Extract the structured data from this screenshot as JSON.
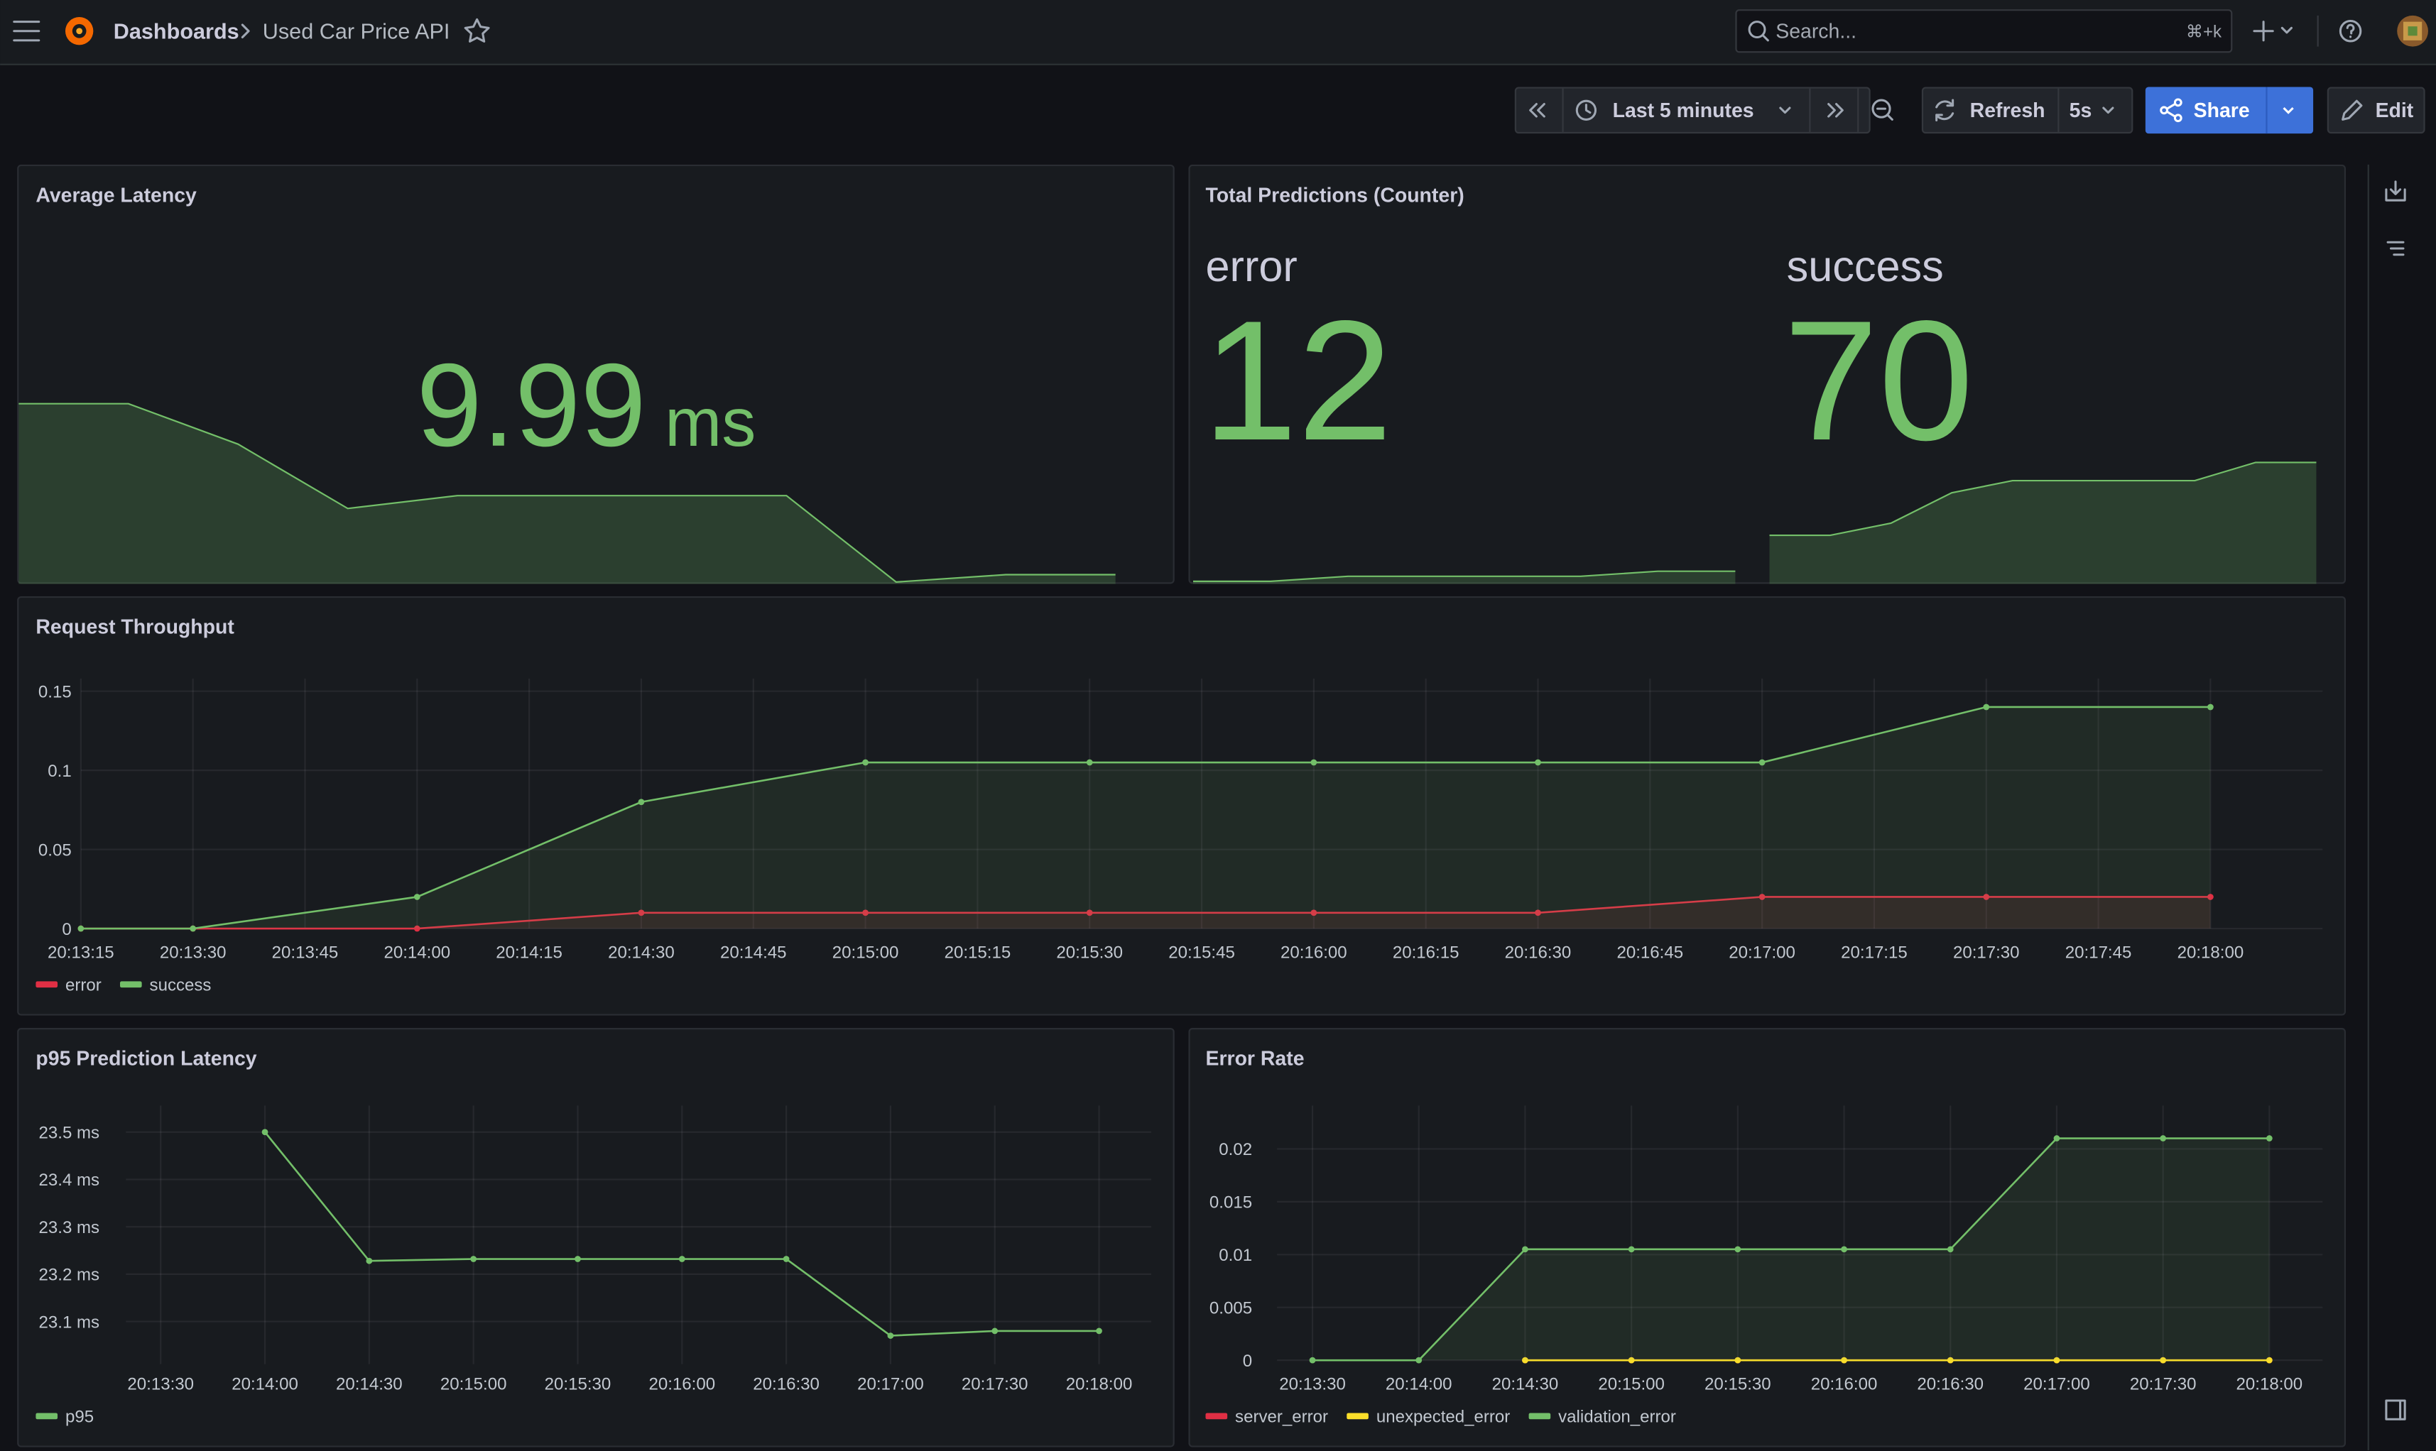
{
  "header": {
    "breadcrumb": [
      "Dashboards",
      "Used Car Price API"
    ],
    "search_placeholder": "Search...",
    "search_shortcut": "⌘+k"
  },
  "toolbar": {
    "time_range": "Last 5 minutes",
    "refresh": "Refresh",
    "interval": "5s",
    "share": "Share",
    "edit": "Edit"
  },
  "chart_data": [
    {
      "type": "stat",
      "title": "Average Latency",
      "value": 9.99,
      "unit": "ms",
      "color": "#73bf69",
      "sparkline": [
        10.92,
        10.92,
        10.7,
        10.35,
        10.42,
        10.42,
        10.42,
        10.42,
        9.95,
        9.99,
        9.99
      ],
      "sparkline_ylim": [
        9.94,
        10.92
      ]
    },
    {
      "type": "stat",
      "title": "Total Predictions (Counter)",
      "color": "#73bf69",
      "series": [
        {
          "name": "error",
          "value": 12,
          "sparkline": [
            8,
            8,
            10,
            10,
            10,
            10,
            12,
            12
          ],
          "sparkline_ylim": [
            7,
            60
          ]
        },
        {
          "name": "success",
          "value": 70,
          "sparkline": [
            58,
            58,
            60,
            65,
            67,
            67,
            67,
            67,
            70,
            70
          ],
          "sparkline_ylim": [
            50,
            72
          ]
        }
      ]
    },
    {
      "type": "line",
      "title": "Request Throughput",
      "x": [
        "20:13:15",
        "20:13:30",
        "20:14:00",
        "20:14:30",
        "20:15:00",
        "20:15:30",
        "20:16:00",
        "20:16:30",
        "20:17:00",
        "20:17:30",
        "20:18:00"
      ],
      "series": [
        {
          "name": "error",
          "color": "#e02f44",
          "values": [
            0,
            0,
            0,
            0.01,
            0.01,
            0.01,
            0.01,
            0.01,
            0.02,
            0.02,
            0.02
          ]
        },
        {
          "name": "success",
          "color": "#73bf69",
          "values": [
            0,
            0,
            0.02,
            0.08,
            0.105,
            0.105,
            0.105,
            0.105,
            0.105,
            0.14,
            0.14
          ]
        }
      ],
      "xlim": [
        "20:13:15",
        "20:18:15"
      ],
      "xticks": [
        "20:13:15",
        "20:13:30",
        "20:13:45",
        "20:14:00",
        "20:14:15",
        "20:14:30",
        "20:14:45",
        "20:15:00",
        "20:15:15",
        "20:15:30",
        "20:15:45",
        "20:16:00",
        "20:16:15",
        "20:16:30",
        "20:16:45",
        "20:17:00",
        "20:17:15",
        "20:17:30",
        "20:17:45",
        "20:18:00"
      ],
      "ylim": [
        0,
        0.158
      ],
      "yticks": [
        0,
        0.05,
        0.1,
        0.15
      ],
      "grid": true,
      "fill": true,
      "legend": "bottom-left"
    },
    {
      "type": "line",
      "title": "p95 Prediction Latency",
      "x": [
        "20:14:00",
        "20:14:30",
        "20:15:00",
        "20:15:30",
        "20:16:00",
        "20:16:30",
        "20:17:00",
        "20:17:30",
        "20:18:00"
      ],
      "series": [
        {
          "name": "p95",
          "color": "#73bf69",
          "values": [
            23.5,
            23.228,
            23.232,
            23.232,
            23.232,
            23.232,
            23.07,
            23.08,
            23.08
          ]
        }
      ],
      "xlim": [
        "20:13:20",
        "20:18:15"
      ],
      "xticks": [
        "20:13:30",
        "20:14:00",
        "20:14:30",
        "20:15:00",
        "20:15:30",
        "20:16:00",
        "20:16:30",
        "20:17:00",
        "20:17:30",
        "20:18:00"
      ],
      "ylim": [
        23.01,
        23.556
      ],
      "yticks": [
        {
          "value": 23.1,
          "label": "23.1 ms"
        },
        {
          "value": 23.2,
          "label": "23.2 ms"
        },
        {
          "value": 23.3,
          "label": "23.3 ms"
        },
        {
          "value": 23.4,
          "label": "23.4 ms"
        },
        {
          "value": 23.5,
          "label": "23.5 ms"
        }
      ],
      "grid": true,
      "fill": false,
      "legend": "bottom-left"
    },
    {
      "type": "line",
      "title": "Error Rate",
      "x": [
        "20:13:30",
        "20:14:00",
        "20:14:30",
        "20:15:00",
        "20:15:30",
        "20:16:00",
        "20:16:30",
        "20:17:00",
        "20:17:30",
        "20:18:00"
      ],
      "series": [
        {
          "name": "server_error",
          "color": "#e02f44",
          "values": [
            null,
            null,
            0,
            0,
            0,
            0,
            0,
            0,
            0,
            0
          ]
        },
        {
          "name": "unexpected_error",
          "color": "#fade2a",
          "values": [
            null,
            null,
            0,
            0,
            0,
            0,
            0,
            0,
            0,
            0
          ]
        },
        {
          "name": "validation_error",
          "color": "#73bf69",
          "values": [
            0,
            0,
            0.0105,
            0.0105,
            0.0105,
            0.0105,
            0.0105,
            0.021,
            0.021,
            0.021
          ]
        }
      ],
      "xlim": [
        "20:13:20",
        "20:18:15"
      ],
      "xticks": [
        "20:13:30",
        "20:14:00",
        "20:14:30",
        "20:15:00",
        "20:15:30",
        "20:16:00",
        "20:16:30",
        "20:17:00",
        "20:17:30",
        "20:18:00"
      ],
      "ylim": [
        0,
        0.0241
      ],
      "yticks": [
        0,
        0.005,
        0.01,
        0.015,
        0.02
      ],
      "grid": true,
      "fill": true,
      "legend": "bottom-left"
    }
  ]
}
